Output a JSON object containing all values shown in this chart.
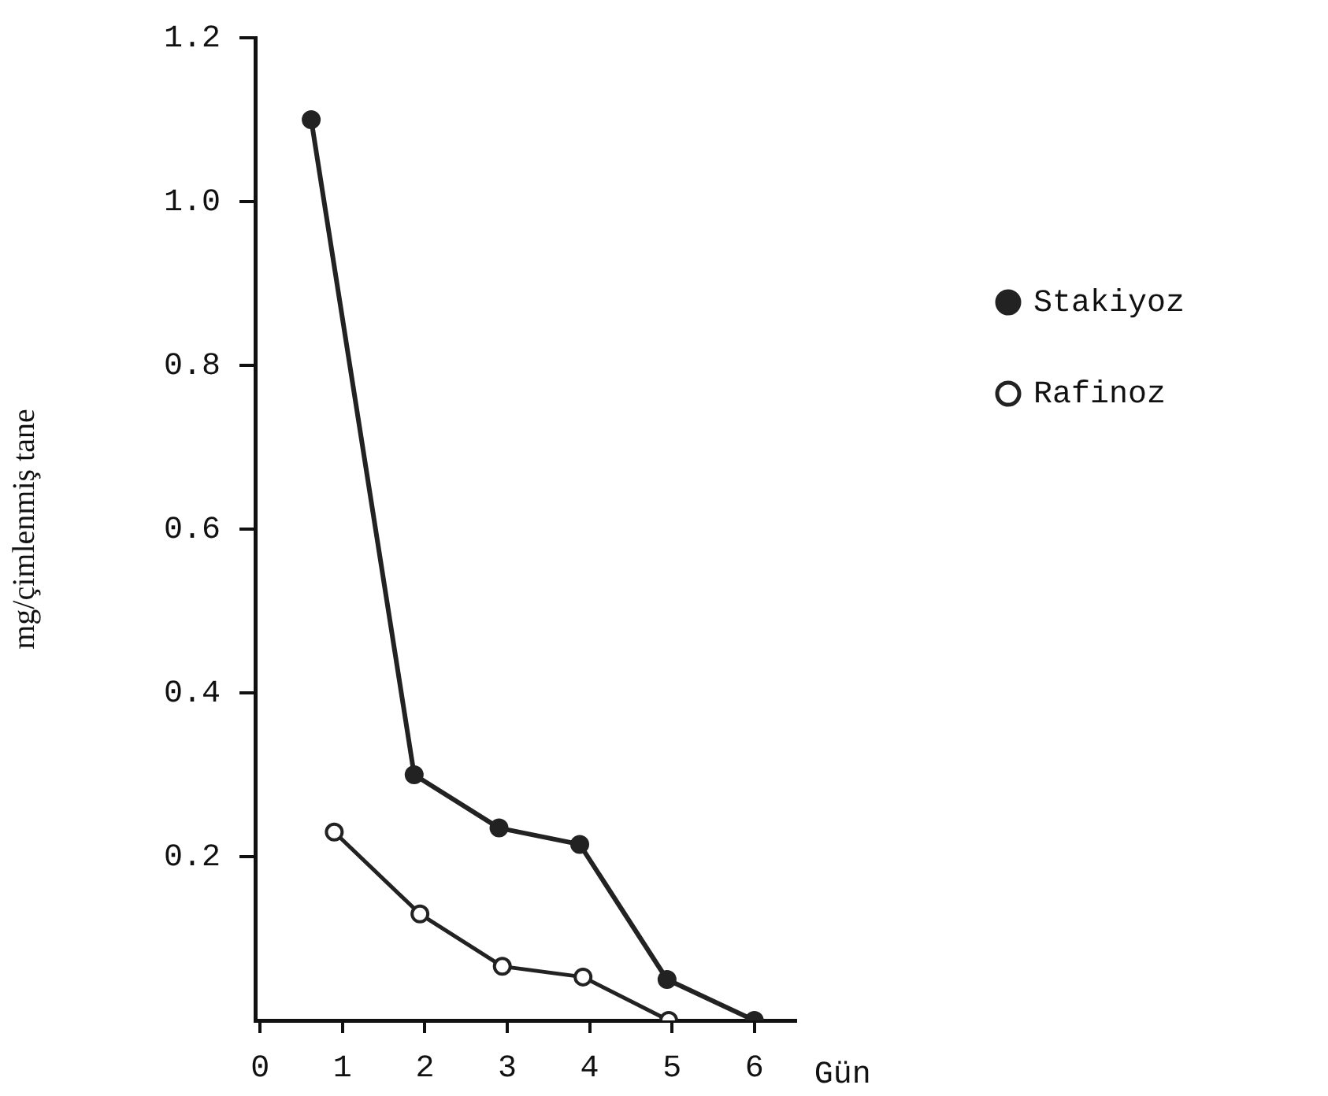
{
  "chart_data": {
    "type": "line",
    "xlabel": "Gün",
    "ylabel": "mg/çimlenmiş tane",
    "xlim": [
      -0.06,
      6.5
    ],
    "xticks": [
      0,
      1,
      2,
      3,
      4,
      5,
      6
    ],
    "ylim": [
      0,
      1.2
    ],
    "yticks": [
      {
        "value": 0.2,
        "label": "0.2"
      },
      {
        "value": 0.4,
        "label": "0.4"
      },
      {
        "value": 0.6,
        "label": "0.6"
      },
      {
        "value": 0.8,
        "label": "0.8"
      },
      {
        "value": 1,
        "label": "1.0"
      },
      {
        "value": 1.2,
        "label": "1.2"
      }
    ],
    "series": [
      {
        "name": "Stakiyoz",
        "color": "#222222",
        "x": [
          0.62,
          1.87,
          2.9,
          3.88,
          4.94,
          6.0
        ],
        "values": [
          1.1,
          0.3,
          0.235,
          0.215,
          0.05,
          0
        ]
      },
      {
        "name": "Rafinoz",
        "color": "#222222",
        "x": [
          0.9,
          1.94,
          2.94,
          3.92,
          4.96
        ],
        "values": [
          0.23,
          0.13,
          0.066,
          0.053,
          0
        ]
      }
    ],
    "grid": false,
    "legend": "right",
    "marker": "circle",
    "line_style": "solid"
  }
}
